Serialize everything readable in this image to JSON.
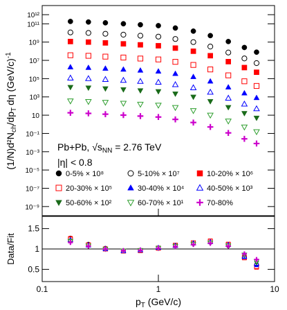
{
  "chart_data": [
    {
      "type": "scatter",
      "log_x": true,
      "log_y": true,
      "y_label": [
        "(1/N)d²N",
        "ch",
        "/dp",
        "T",
        "dη (GeV/c)",
        "-1"
      ],
      "annotations": {
        "system": "Pb+Pb, √s",
        "system_sub": "NN",
        "system_val": " = 2.76 TeV",
        "eta": "|η| < 0.8"
      },
      "xlim": [
        0.1,
        10
      ],
      "ylim": [
        1e-10,
        10000000000000.0
      ],
      "yticks": [
        {
          "value": 1000000000000.0,
          "label": "10¹²"
        },
        {
          "value": 100000000000.0,
          "label": "10¹¹"
        },
        {
          "value": 1000000000.0,
          "label": "10⁹"
        },
        {
          "value": 10000000.0,
          "label": "10⁷"
        },
        {
          "value": 100000.0,
          "label": "10⁵"
        },
        {
          "value": 1000.0,
          "label": "10³"
        },
        10,
        {
          "value": 0.1,
          "label": "10⁻¹"
        },
        {
          "value": 0.001,
          "label": "10⁻³"
        },
        {
          "value": 1e-05,
          "label": "10⁻⁵"
        },
        {
          "value": 1e-07,
          "label": "10⁻⁷"
        },
        {
          "value": 1e-09,
          "label": "10⁻⁹"
        }
      ],
      "x": [
        0.175,
        0.25,
        0.35,
        0.5,
        0.7,
        1.0,
        1.4,
        2.0,
        2.8,
        4.0,
        5.5,
        7.0
      ],
      "series": [
        {
          "name": "0-5% × 10⁸",
          "color": "#000000",
          "marker": "circle",
          "values": [
            182000000000.0,
            158000000000.0,
            129000000000.0,
            102000000000.0,
            79400000000.0,
            63100000000.0,
            34700000000.0,
            15800000000.0,
            5130000000.0,
            1150000000.0,
            257000000.0,
            79400000.0
          ]
        },
        {
          "name": "5-10% × 10⁷",
          "color": "#000000",
          "marker": "circle-open",
          "values": [
            11500000000.0,
            10000000000.0,
            8130000000.0,
            6460000000.0,
            5010000000.0,
            3980000000.0,
            2190000000.0,
            1000000000.0,
            324000000.0,
            72400000.0,
            16200000.0,
            5010000.0
          ]
        },
        {
          "name": "10-20% × 10⁶",
          "color": "#ff0000",
          "marker": "square",
          "values": [
            1150000000.0,
            1000000000.0,
            813000000.0,
            646000000.0,
            501000000.0,
            398000000.0,
            219000000.0,
            100000000.0,
            32400000.0,
            7240000.0,
            1620000.0,
            501000.0
          ]
        },
        {
          "name": "20-30% × 10⁵",
          "color": "#ff0000",
          "marker": "square-open",
          "values": [
            36300000.0,
            31600000.0,
            25700000.0,
            20400000.0,
            15800000.0,
            12600000.0,
            6920000.0,
            3160000.0,
            1020000.0,
            229000.0,
            51300.0,
            15800.0
          ]
        },
        {
          "name": "30-40% × 10⁴",
          "color": "#0000ff",
          "marker": "triangle",
          "values": [
            1820000.0,
            1580000.0,
            1290000.0,
            1020000.0,
            794000.0,
            631000.0,
            347000.0,
            158000.0,
            51300.0,
            11500.0,
            2570.0,
            794.0
          ]
        },
        {
          "name": "40-50% × 10³",
          "color": "#0000ff",
          "marker": "triangle-open",
          "values": [
            115000.0,
            100000.0,
            81300.0,
            64600.0,
            50100.0,
            39800.0,
            21900.0,
            10000.0,
            3240.0,
            724,
            162,
            50.1
          ]
        },
        {
          "name": "50-60% × 10²",
          "color": "#1a6b1a",
          "marker": "triangle-down",
          "values": [
            11500.0,
            10000.0,
            8130.0,
            6460.0,
            5010.0,
            3980.0,
            2190.0,
            1000.0,
            324,
            72.4,
            16.2,
            5.01
          ]
        },
        {
          "name": "60-70% × 10¹",
          "color": "#2e9e2e",
          "marker": "triangle-down-open",
          "values": [
            363,
            316,
            257,
            204,
            158,
            126,
            69.2,
            31.6,
            10.2,
            2.29,
            0.513,
            0.158
          ]
        },
        {
          "name": "70-80%",
          "color": "#cc00cc",
          "marker": "cross",
          "values": [
            18.2,
            15.8,
            12.9,
            10.2,
            7.94,
            6.31,
            3.47,
            1.58,
            0.513,
            0.115,
            0.0257,
            0.00794
          ]
        }
      ]
    },
    {
      "type": "scatter",
      "log_x": true,
      "log_y": false,
      "y_label": "Data/Fit",
      "x_label": [
        "p",
        "T",
        " (GeV/c)"
      ],
      "xlim": [
        0.1,
        10
      ],
      "xticks": [
        0.1,
        1,
        10
      ],
      "ylim": [
        0.2,
        1.8
      ],
      "yticks": [
        0.5,
        1,
        1.5
      ],
      "reference_line": 1,
      "x": [
        0.175,
        0.25,
        0.35,
        0.5,
        0.7,
        1.0,
        1.4,
        2.0,
        2.8,
        4.0,
        5.5,
        7.0
      ],
      "series": [
        {
          "color": "#000000",
          "marker": "circle",
          "values": [
            1.27,
            1.12,
            1.02,
            0.96,
            0.96,
            1.02,
            1.08,
            1.13,
            1.16,
            1.08,
            0.82,
            0.62
          ]
        },
        {
          "color": "#000000",
          "marker": "circle-open",
          "values": [
            1.25,
            1.11,
            1.01,
            0.95,
            0.96,
            1.02,
            1.08,
            1.14,
            1.17,
            1.09,
            0.8,
            0.6
          ]
        },
        {
          "color": "#ff0000",
          "marker": "square",
          "values": [
            1.26,
            1.1,
            1.0,
            0.95,
            0.96,
            1.02,
            1.09,
            1.15,
            1.2,
            1.12,
            0.78,
            0.55
          ]
        },
        {
          "color": "#ff0000",
          "marker": "square-open",
          "values": [
            1.24,
            1.1,
            1.0,
            0.95,
            0.96,
            1.02,
            1.09,
            1.15,
            1.19,
            1.11,
            0.79,
            0.57
          ]
        },
        {
          "color": "#0000ff",
          "marker": "triangle",
          "values": [
            1.23,
            1.09,
            1.0,
            0.95,
            0.97,
            1.03,
            1.09,
            1.15,
            1.18,
            1.1,
            0.8,
            0.6
          ]
        },
        {
          "color": "#0000ff",
          "marker": "triangle-open",
          "values": [
            1.22,
            1.09,
            1.0,
            0.95,
            0.97,
            1.03,
            1.08,
            1.14,
            1.17,
            1.1,
            0.82,
            0.64
          ]
        },
        {
          "color": "#1a6b1a",
          "marker": "triangle-down",
          "values": [
            1.2,
            1.08,
            1.0,
            0.96,
            0.97,
            1.03,
            1.08,
            1.13,
            1.16,
            1.09,
            0.84,
            0.66
          ]
        },
        {
          "color": "#2e9e2e",
          "marker": "triangle-down-open",
          "values": [
            1.19,
            1.08,
            1.0,
            0.96,
            0.97,
            1.02,
            1.07,
            1.12,
            1.15,
            1.08,
            0.86,
            0.7
          ]
        },
        {
          "color": "#cc00cc",
          "marker": "cross",
          "values": [
            1.16,
            1.07,
            1.0,
            0.96,
            0.97,
            1.02,
            1.06,
            1.11,
            1.14,
            1.07,
            0.88,
            0.74
          ]
        }
      ]
    }
  ]
}
